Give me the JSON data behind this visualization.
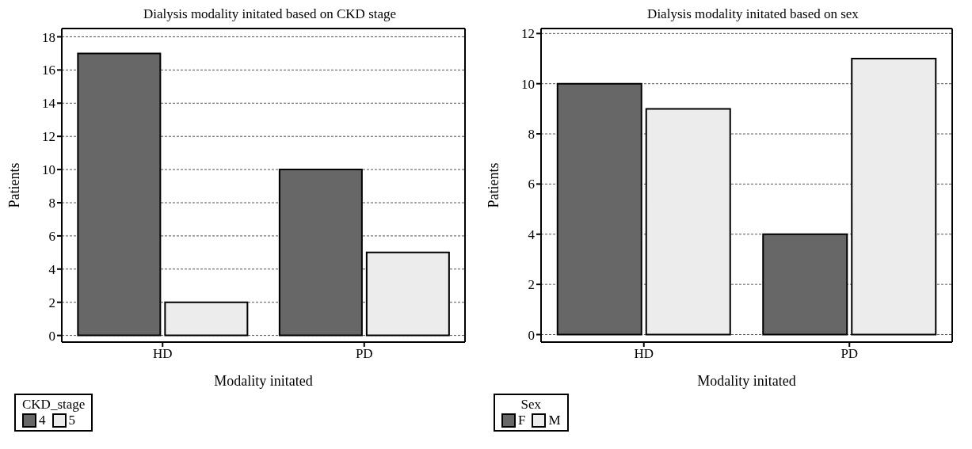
{
  "chart_data": [
    {
      "type": "bar",
      "title": "Dialysis modality initated based on CKD stage",
      "xlabel": "Modality initated",
      "ylabel": "Patients",
      "legend_title": "CKD_stage",
      "categories": [
        "HD",
        "PD"
      ],
      "series": [
        {
          "name": "4",
          "color": "#676767",
          "values": [
            17,
            10
          ]
        },
        {
          "name": "5",
          "color": "#ececec",
          "values": [
            2,
            5
          ]
        }
      ],
      "ylim": [
        -0.4,
        18.5
      ],
      "yticks": [
        0,
        2,
        4,
        6,
        8,
        10,
        12,
        14,
        16,
        18
      ],
      "grid": "y",
      "legend": "bottom"
    },
    {
      "type": "bar",
      "title": "Dialysis modality initated based on sex",
      "xlabel": "Modality initated",
      "ylabel": "Patients",
      "legend_title": "Sex",
      "categories": [
        "HD",
        "PD"
      ],
      "series": [
        {
          "name": "F",
          "color": "#676767",
          "values": [
            10,
            4
          ]
        },
        {
          "name": "M",
          "color": "#ececec",
          "values": [
            9,
            11
          ]
        }
      ],
      "ylim": [
        -0.3,
        12.2
      ],
      "yticks": [
        0,
        2,
        4,
        6,
        8,
        10,
        12
      ],
      "grid": "y",
      "legend": "bottom"
    }
  ]
}
